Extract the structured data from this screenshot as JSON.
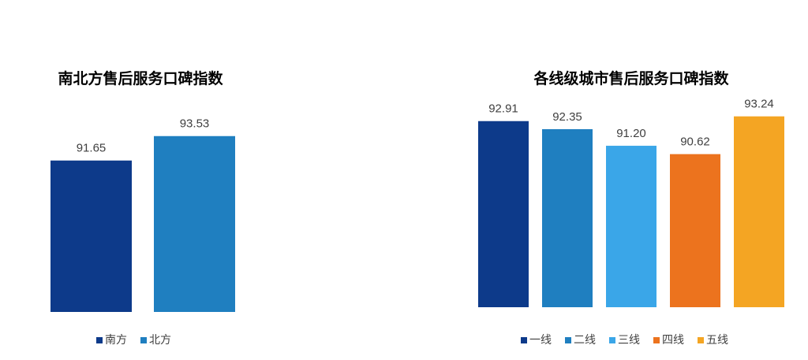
{
  "chart_data": [
    {
      "type": "bar",
      "title": "南北方售后服务口碑指数",
      "categories": [
        "南方",
        "北方"
      ],
      "values": [
        91.65,
        93.53
      ],
      "colors": [
        "#0d3a8a",
        "#1f7fc0"
      ],
      "ylim": [
        80,
        95
      ],
      "legend": "bottom"
    },
    {
      "type": "bar",
      "title": "各线级城市售后服务口碑指数",
      "categories": [
        "一线",
        "二线",
        "三线",
        "四线",
        "五线"
      ],
      "values": [
        92.91,
        92.35,
        91.2,
        90.62,
        93.24
      ],
      "value_labels": [
        "92.91",
        "92.35",
        "91.20",
        "90.62",
        "93.24"
      ],
      "colors": [
        "#0d3a8a",
        "#1f7fc0",
        "#3aa6e8",
        "#ec731e",
        "#f4a523"
      ],
      "ylim": [
        80,
        95
      ],
      "legend": "bottom"
    }
  ]
}
